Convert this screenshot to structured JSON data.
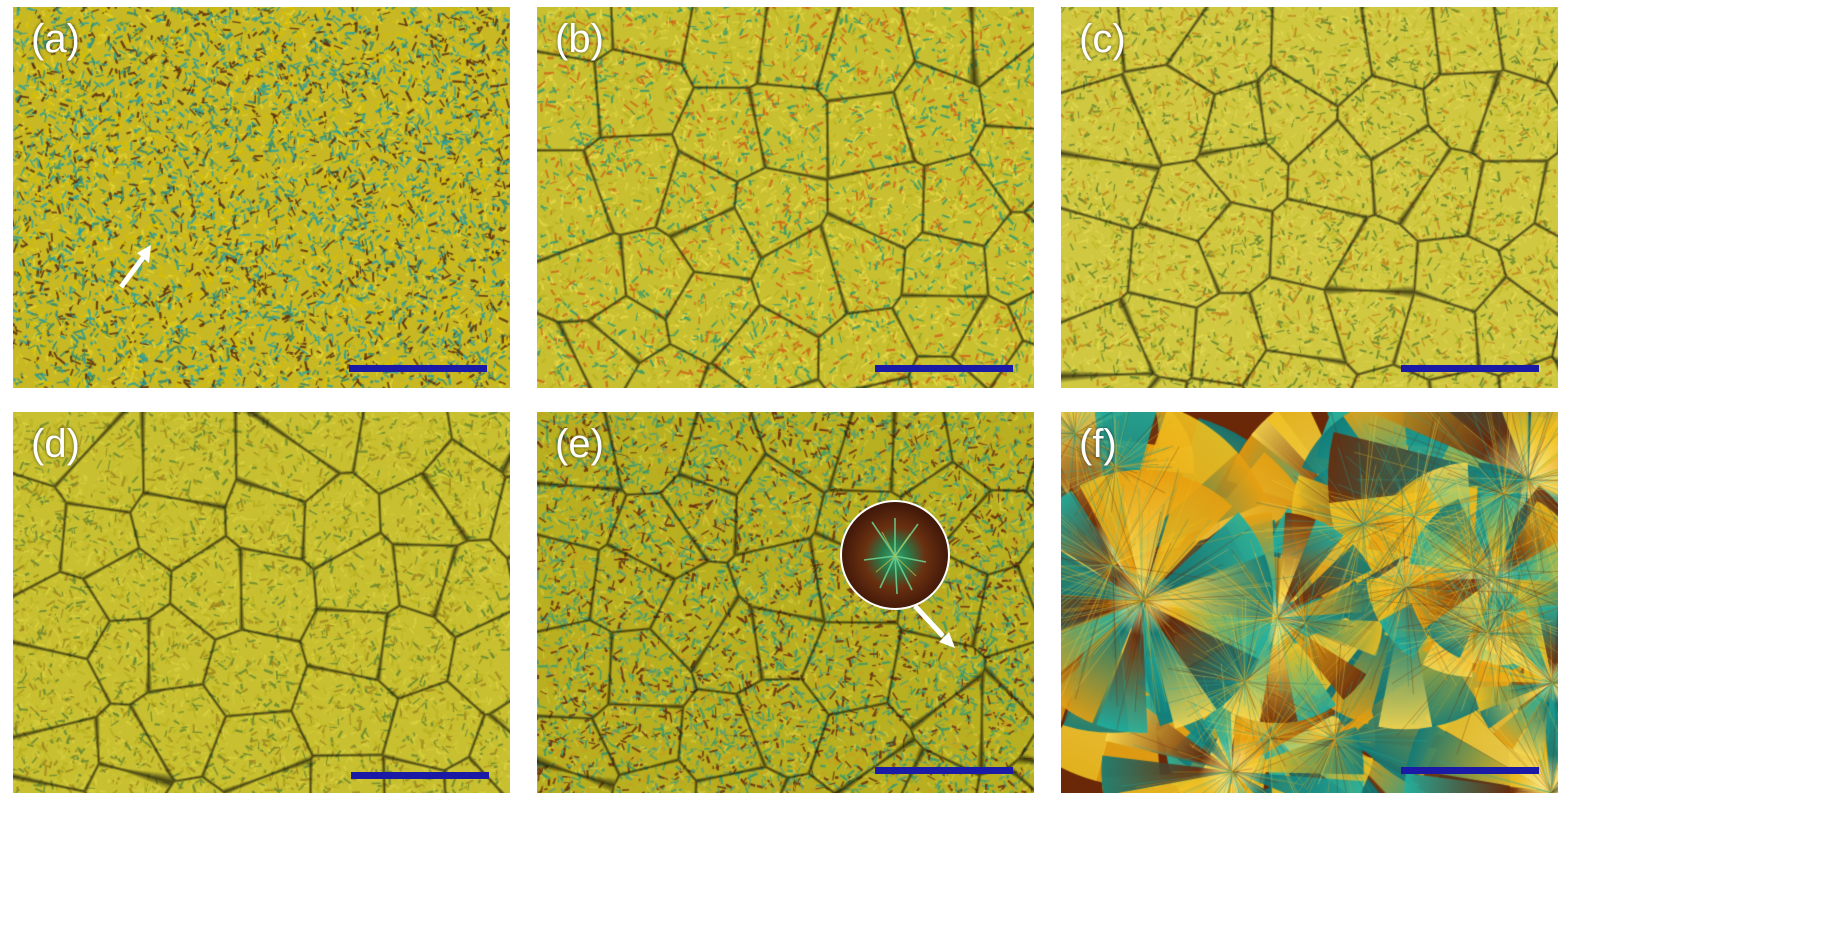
{
  "figure": {
    "panels": [
      {
        "id": "a",
        "label": "(a)",
        "texture": "fine-mixed",
        "palette": [
          "#c8b824",
          "#e0d030",
          "#2aa0a0",
          "#5a3010",
          "#d8c000",
          "#3a8a6a"
        ],
        "boundaries": false,
        "arrow": true
      },
      {
        "id": "b",
        "label": "(b)",
        "texture": "fine-yellow",
        "palette": [
          "#c8c030",
          "#d8d040",
          "#b8b020",
          "#3a9a6a",
          "#cc6a1a",
          "#e6d84a"
        ],
        "boundaries": true,
        "arrow": false
      },
      {
        "id": "c",
        "label": "(c)",
        "texture": "fine-yellow",
        "palette": [
          "#d0c840",
          "#bcb828",
          "#e0d850",
          "#6a8a30",
          "#c08a20",
          "#dcd050"
        ],
        "boundaries": true,
        "arrow": false
      },
      {
        "id": "d",
        "label": "(d)",
        "texture": "fine-yellow",
        "palette": [
          "#c8c030",
          "#b8b020",
          "#d8d040",
          "#6a8a30",
          "#a08a20",
          "#d0c838"
        ],
        "boundaries": true,
        "arrow": false
      },
      {
        "id": "e",
        "label": "(e)",
        "texture": "fine-mixed",
        "palette": [
          "#b8b020",
          "#d0c838",
          "#3a9a6a",
          "#6a3010",
          "#c8a020",
          "#5aa070"
        ],
        "boundaries": true,
        "arrow": true,
        "inset": true
      },
      {
        "id": "f",
        "label": "(f)",
        "texture": "spherulite",
        "palette": [
          "#f0c020",
          "#e8a010",
          "#20b0a0",
          "#107a78",
          "#6a2808",
          "#f8d850"
        ],
        "boundaries": false,
        "arrow": false
      }
    ],
    "colors": {
      "scalebar": "#1a1aa6",
      "label": "#ffffff",
      "boundary": "#1a1a08"
    }
  }
}
